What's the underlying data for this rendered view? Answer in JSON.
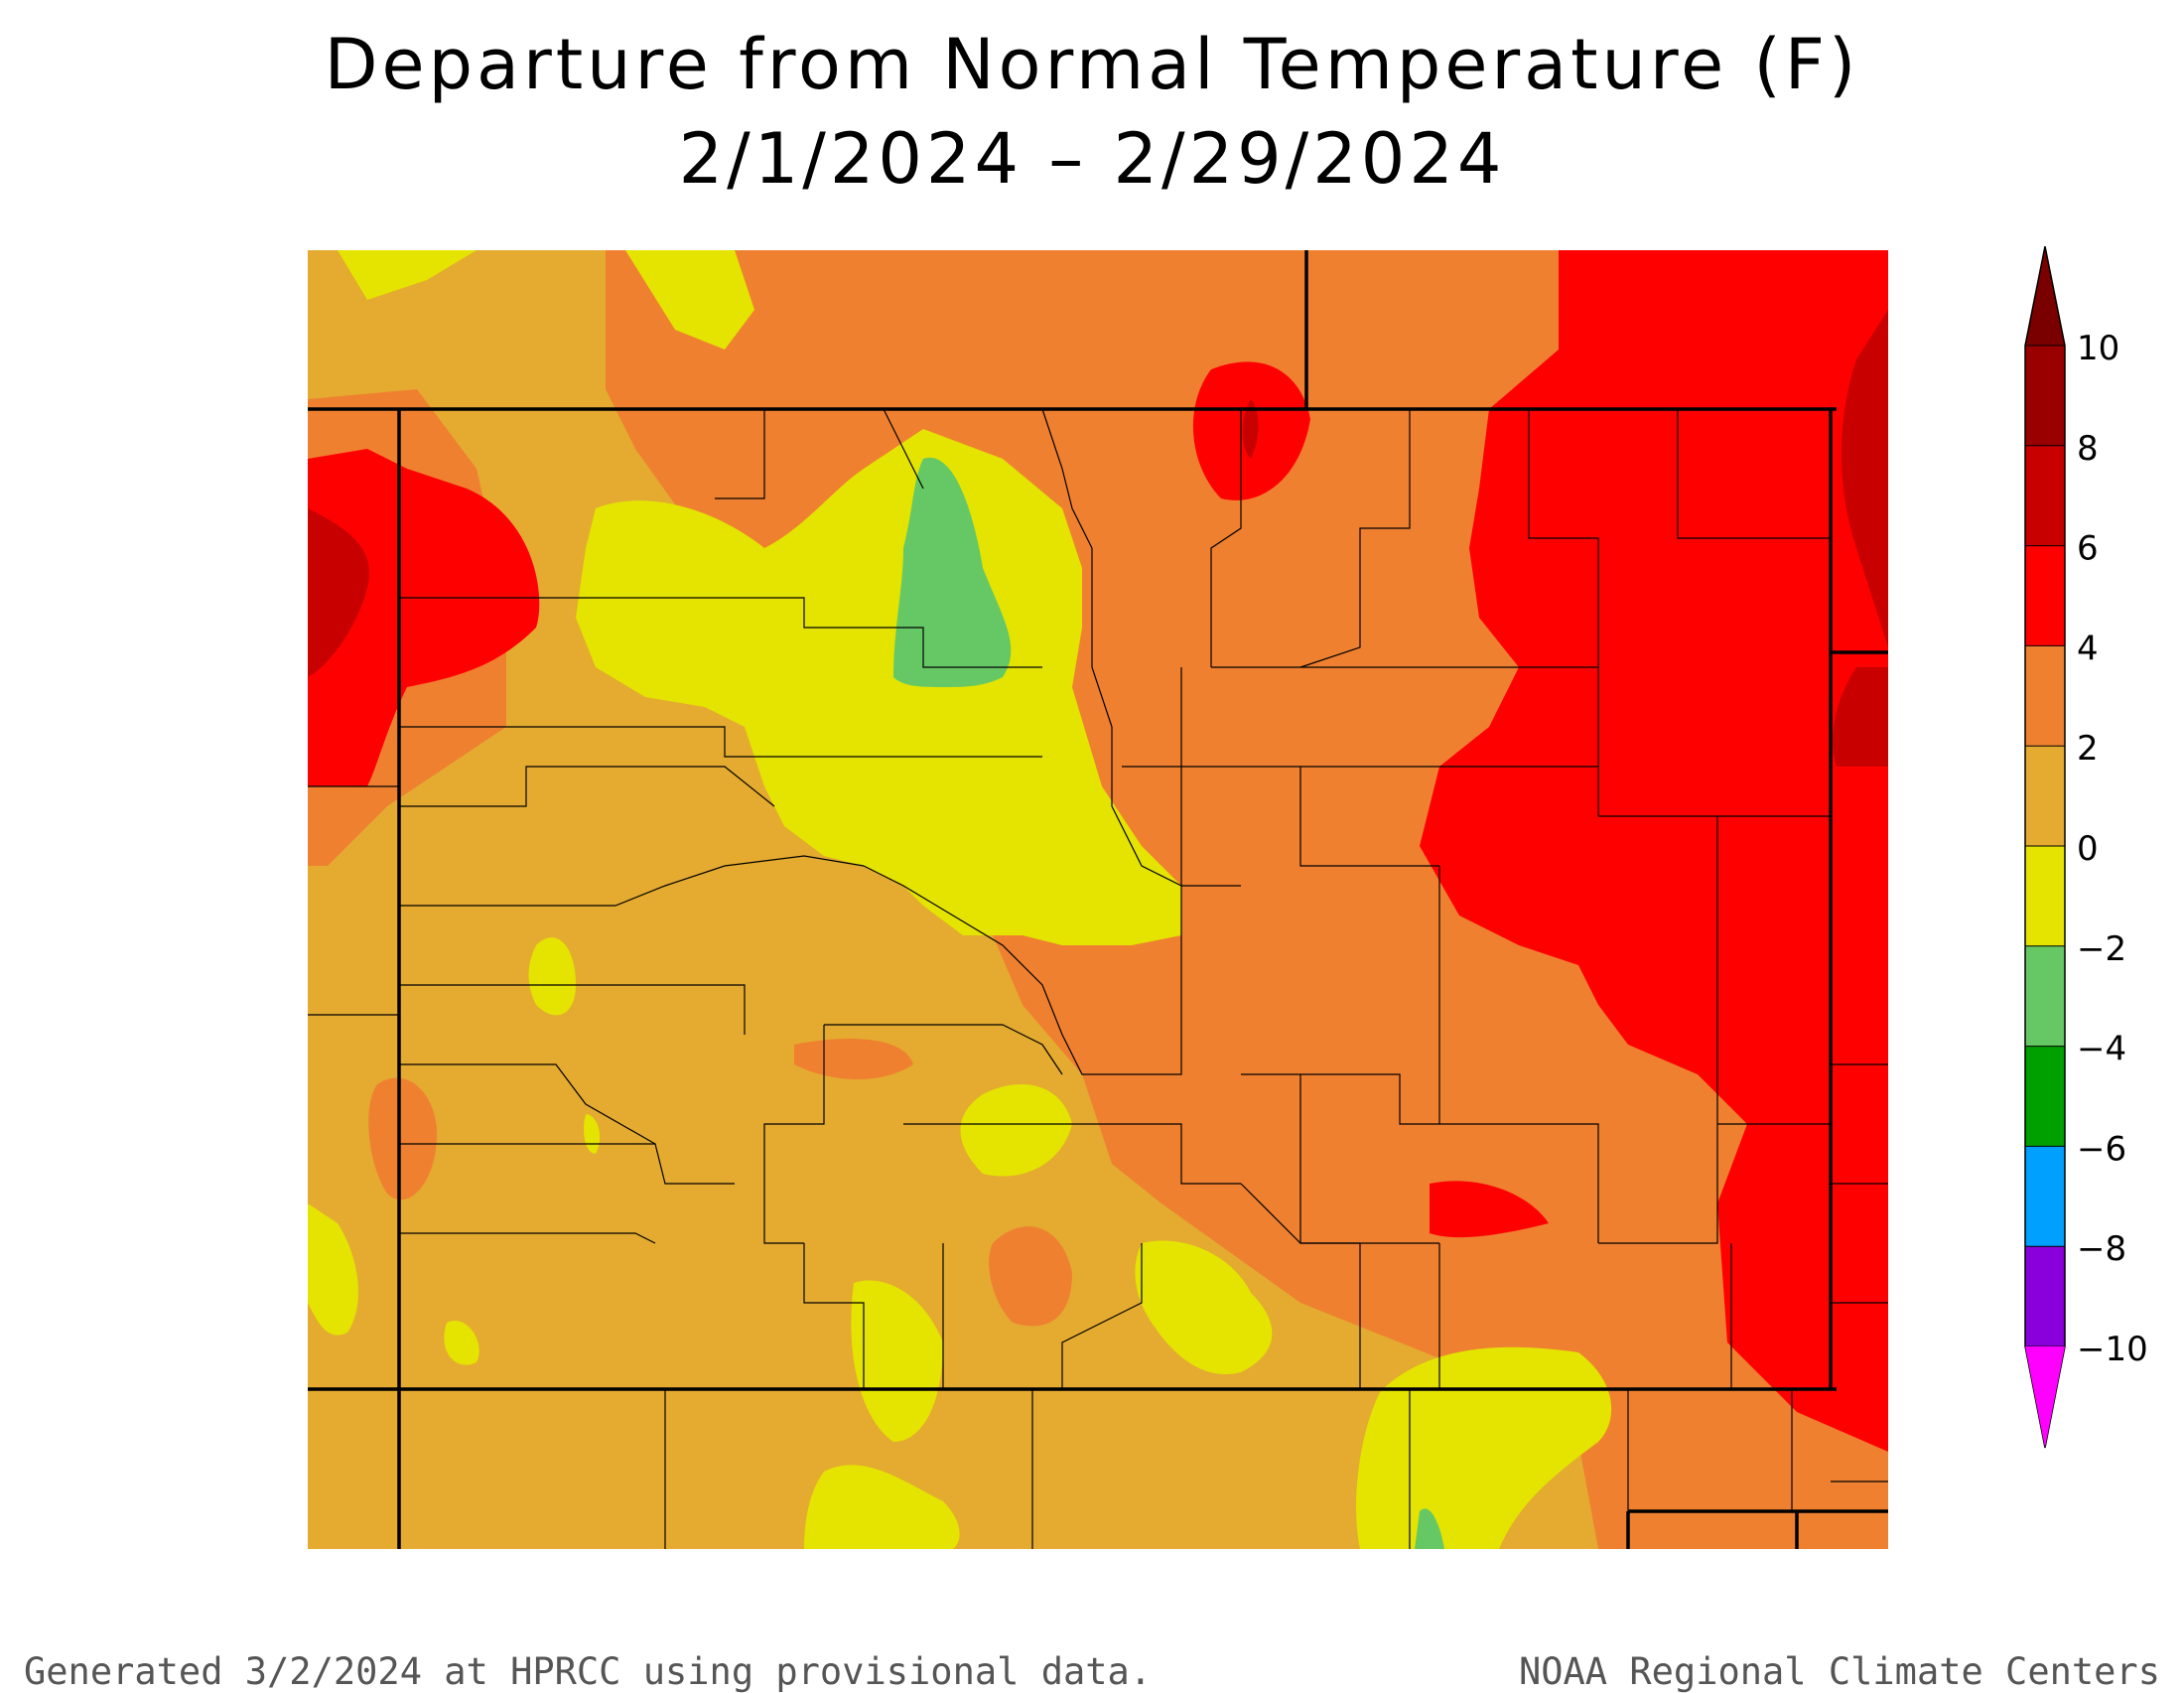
{
  "title": {
    "line1": "Departure from Normal Temperature (F)",
    "line2": "2/1/2024 – 2/29/2024"
  },
  "legend": {
    "levels": [
      {
        "label": "10",
        "color": "#9b0000"
      },
      {
        "label": "8",
        "color": "#c80000"
      },
      {
        "label": "6",
        "color": "#ff0000"
      },
      {
        "label": "4",
        "color": "#ef8030"
      },
      {
        "label": "2",
        "color": "#e4ab30"
      },
      {
        "label": "0",
        "color": "#e4e400"
      },
      {
        "label": "−2",
        "color": "#66c864"
      },
      {
        "label": "−4",
        "color": "#00a000"
      },
      {
        "label": "−6",
        "color": "#00a0ff"
      },
      {
        "label": "−8",
        "color": "#8a00dc"
      },
      {
        "label": "−10",
        "color": "#a000c8"
      }
    ],
    "top_cap_color": "#7a0000",
    "bottom_cap_color": "#ff00ff"
  },
  "footer": {
    "left": "Generated 3/2/2024 at HPRCC using provisional data.",
    "right": "NOAA Regional Climate Centers"
  }
}
